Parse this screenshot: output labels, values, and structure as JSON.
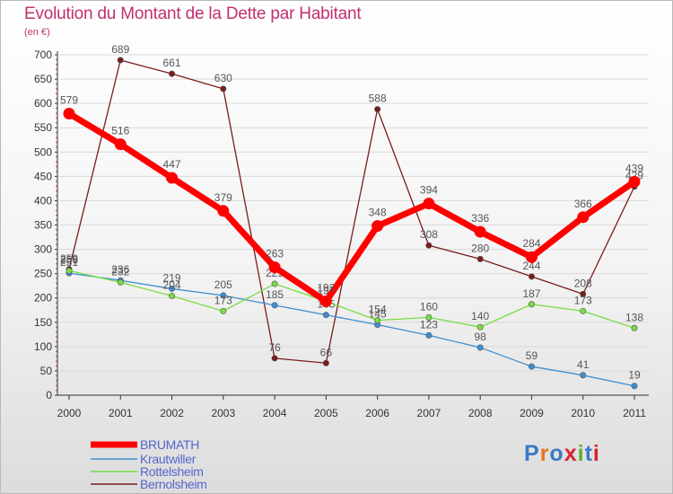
{
  "title": "Evolution du Montant de la Dette par Habitant",
  "unit": "(en €)",
  "logo_text": "Proxiti",
  "colors": {
    "title": "#c0306f",
    "axis": "#333333",
    "grid": "#d9d9d9",
    "legend_text": "#5566cc"
  },
  "chart_data": {
    "type": "line",
    "title": "Evolution du Montant de la Dette par Habitant",
    "ylabel": "(en €)",
    "xlabel": "",
    "x": [
      "2000",
      "2001",
      "2002",
      "2003",
      "2004",
      "2005",
      "2006",
      "2007",
      "2008",
      "2009",
      "2010",
      "2011"
    ],
    "ylim": [
      0,
      700
    ],
    "yticks": [
      0,
      50,
      100,
      150,
      200,
      250,
      300,
      350,
      400,
      450,
      500,
      550,
      600,
      650,
      700
    ],
    "grid": "horizontal",
    "legend_position": "bottom-left",
    "series": [
      {
        "name": "BRUMATH",
        "color": "#ff0000",
        "line_width": "thick",
        "values": [
          579,
          516,
          447,
          379,
          263,
          193,
          348,
          394,
          336,
          284,
          366,
          439
        ]
      },
      {
        "name": "Krautwiller",
        "color": "#3d8fd1",
        "line_width": "thin",
        "values": [
          251,
          236,
          219,
          205,
          185,
          165,
          145,
          123,
          98,
          59,
          41,
          19
        ]
      },
      {
        "name": "Rottelsheim",
        "color": "#77dd44",
        "line_width": "thin",
        "values": [
          256,
          232,
          204,
          173,
          229,
          193,
          154,
          160,
          140,
          187,
          173,
          138
        ]
      },
      {
        "name": "Bernolsheim",
        "color": "#7a1c1c",
        "line_width": "thin",
        "values": [
          259,
          689,
          661,
          630,
          76,
          66,
          588,
          308,
          280,
          244,
          208,
          429
        ]
      }
    ]
  }
}
